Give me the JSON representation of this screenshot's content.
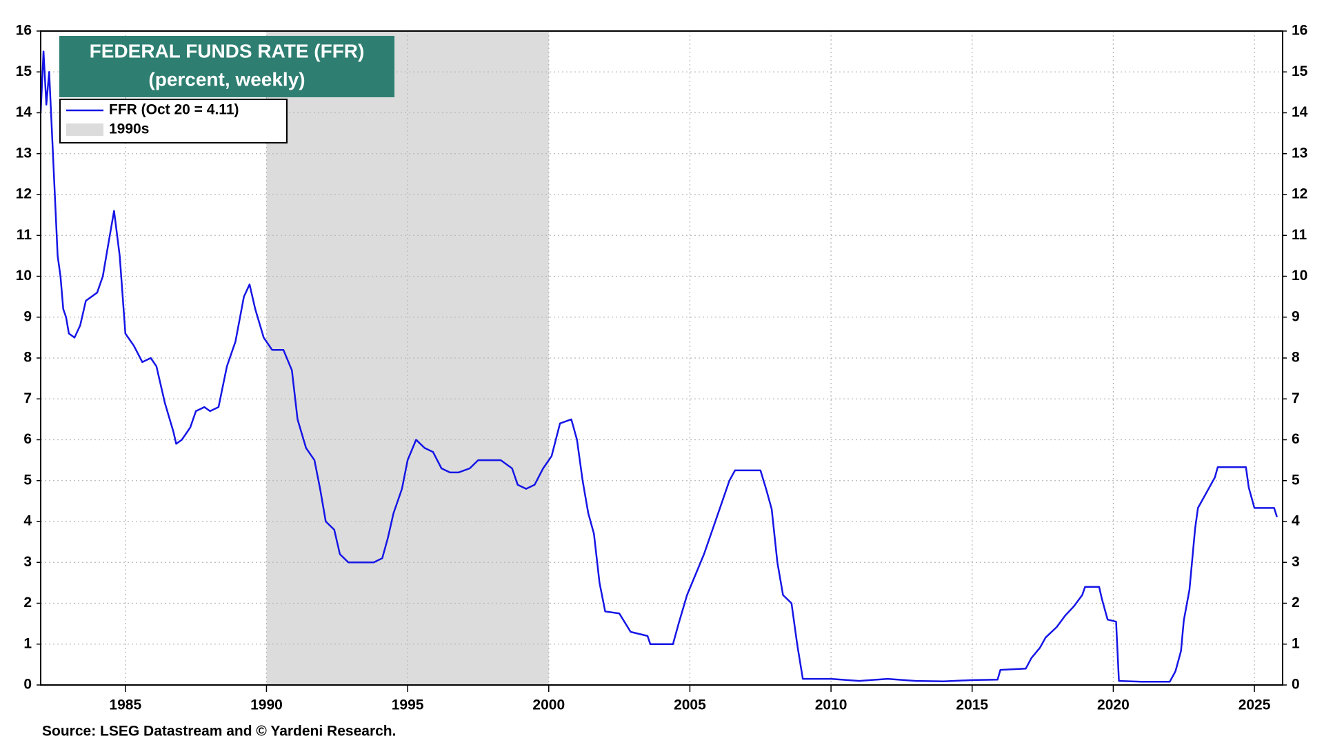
{
  "chart_data": {
    "type": "line",
    "title": "FEDERAL FUNDS RATE (FFR)",
    "subtitle": "(percent, weekly)",
    "source": "Source: LSEG Datastream and © Yardeni Research.",
    "title_color": "#2e7f71",
    "band": {
      "name": "1990s",
      "color": "#dcdcdc",
      "x": [
        1990,
        2000
      ]
    },
    "x": [
      1982.0,
      1982.1,
      1982.2,
      1982.3,
      1982.4,
      1982.5,
      1982.6,
      1982.7,
      1982.8,
      1982.9,
      1983.0,
      1983.2,
      1983.4,
      1983.6,
      1983.8,
      1984.0,
      1984.2,
      1984.4,
      1984.6,
      1984.8,
      1985.0,
      1985.3,
      1985.6,
      1985.9,
      1986.1,
      1986.4,
      1986.7,
      1986.8,
      1987.0,
      1987.3,
      1987.5,
      1987.8,
      1988.0,
      1988.3,
      1988.6,
      1988.9,
      1989.2,
      1989.4,
      1989.6,
      1989.9,
      1990.2,
      1990.6,
      1990.9,
      1991.1,
      1991.4,
      1991.7,
      1991.9,
      1992.1,
      1992.4,
      1992.6,
      1992.9,
      1993.2,
      1993.5,
      1993.8,
      1994.1,
      1994.3,
      1994.5,
      1994.8,
      1995.0,
      1995.3,
      1995.6,
      1995.9,
      1996.2,
      1996.5,
      1996.8,
      1997.2,
      1997.5,
      1997.9,
      1998.3,
      1998.7,
      1998.9,
      1999.2,
      1999.5,
      1999.8,
      2000.1,
      2000.4,
      2000.8,
      2001.0,
      2001.2,
      2001.4,
      2001.6,
      2001.8,
      2002.0,
      2002.5,
      2002.9,
      2003.5,
      2003.6,
      2004.4,
      2004.6,
      2004.9,
      2005.2,
      2005.5,
      2005.8,
      2006.1,
      2006.4,
      2006.6,
      2007.5,
      2007.7,
      2007.9,
      2008.1,
      2008.3,
      2008.6,
      2008.8,
      2009.0,
      2010.0,
      2011.0,
      2012.0,
      2013.0,
      2014.0,
      2015.0,
      2015.9,
      2016.0,
      2016.9,
      2017.1,
      2017.4,
      2017.6,
      2018.0,
      2018.3,
      2018.6,
      2018.9,
      2019.0,
      2019.5,
      2019.6,
      2019.8,
      2020.1,
      2020.2,
      2021.0,
      2022.0,
      2022.2,
      2022.4,
      2022.5,
      2022.7,
      2022.8,
      2022.9,
      2023.0,
      2023.2,
      2023.4,
      2023.6,
      2023.7,
      2024.7,
      2024.8,
      2024.9,
      2025.0,
      2025.7,
      2025.8
    ],
    "series": [
      {
        "name": "FFR (Oct 20 = 4.11)",
        "color": "#1515e6",
        "values": [
          14.0,
          15.5,
          14.2,
          15.0,
          13.5,
          12.0,
          10.5,
          10.0,
          9.2,
          9.0,
          8.6,
          8.5,
          8.8,
          9.4,
          9.5,
          9.6,
          10.0,
          10.8,
          11.6,
          10.5,
          8.6,
          8.3,
          7.9,
          8.0,
          7.8,
          6.9,
          6.2,
          5.9,
          6.0,
          6.3,
          6.7,
          6.8,
          6.7,
          6.8,
          7.8,
          8.4,
          9.5,
          9.8,
          9.2,
          8.5,
          8.2,
          8.2,
          7.7,
          6.5,
          5.8,
          5.5,
          4.8,
          4.0,
          3.8,
          3.2,
          3.0,
          3.0,
          3.0,
          3.0,
          3.1,
          3.6,
          4.2,
          4.8,
          5.5,
          6.0,
          5.8,
          5.7,
          5.3,
          5.2,
          5.2,
          5.3,
          5.5,
          5.5,
          5.5,
          5.3,
          4.9,
          4.8,
          4.9,
          5.3,
          5.6,
          6.4,
          6.5,
          6.0,
          5.0,
          4.2,
          3.7,
          2.5,
          1.8,
          1.75,
          1.3,
          1.2,
          1.0,
          1.0,
          1.5,
          2.2,
          2.7,
          3.2,
          3.8,
          4.4,
          5.0,
          5.25,
          5.25,
          4.8,
          4.3,
          3.0,
          2.2,
          2.0,
          1.0,
          0.15,
          0.15,
          0.1,
          0.15,
          0.1,
          0.09,
          0.12,
          0.13,
          0.37,
          0.4,
          0.66,
          0.91,
          1.16,
          1.42,
          1.7,
          1.92,
          2.2,
          2.4,
          2.4,
          2.1,
          1.6,
          1.55,
          0.1,
          0.08,
          0.08,
          0.33,
          0.83,
          1.58,
          2.33,
          3.08,
          3.83,
          4.33,
          4.58,
          4.83,
          5.08,
          5.33,
          5.33,
          4.83,
          4.58,
          4.33,
          4.33,
          4.11
        ]
      }
    ],
    "xlim": [
      1982,
      2026
    ],
    "xticks": [
      1985,
      1990,
      1995,
      2000,
      2005,
      2010,
      2015,
      2020,
      2025
    ],
    "ylim": [
      0,
      16
    ],
    "yticks": [
      0,
      1,
      2,
      3,
      4,
      5,
      6,
      7,
      8,
      9,
      10,
      11,
      12,
      13,
      14,
      15,
      16
    ],
    "grid": true
  }
}
